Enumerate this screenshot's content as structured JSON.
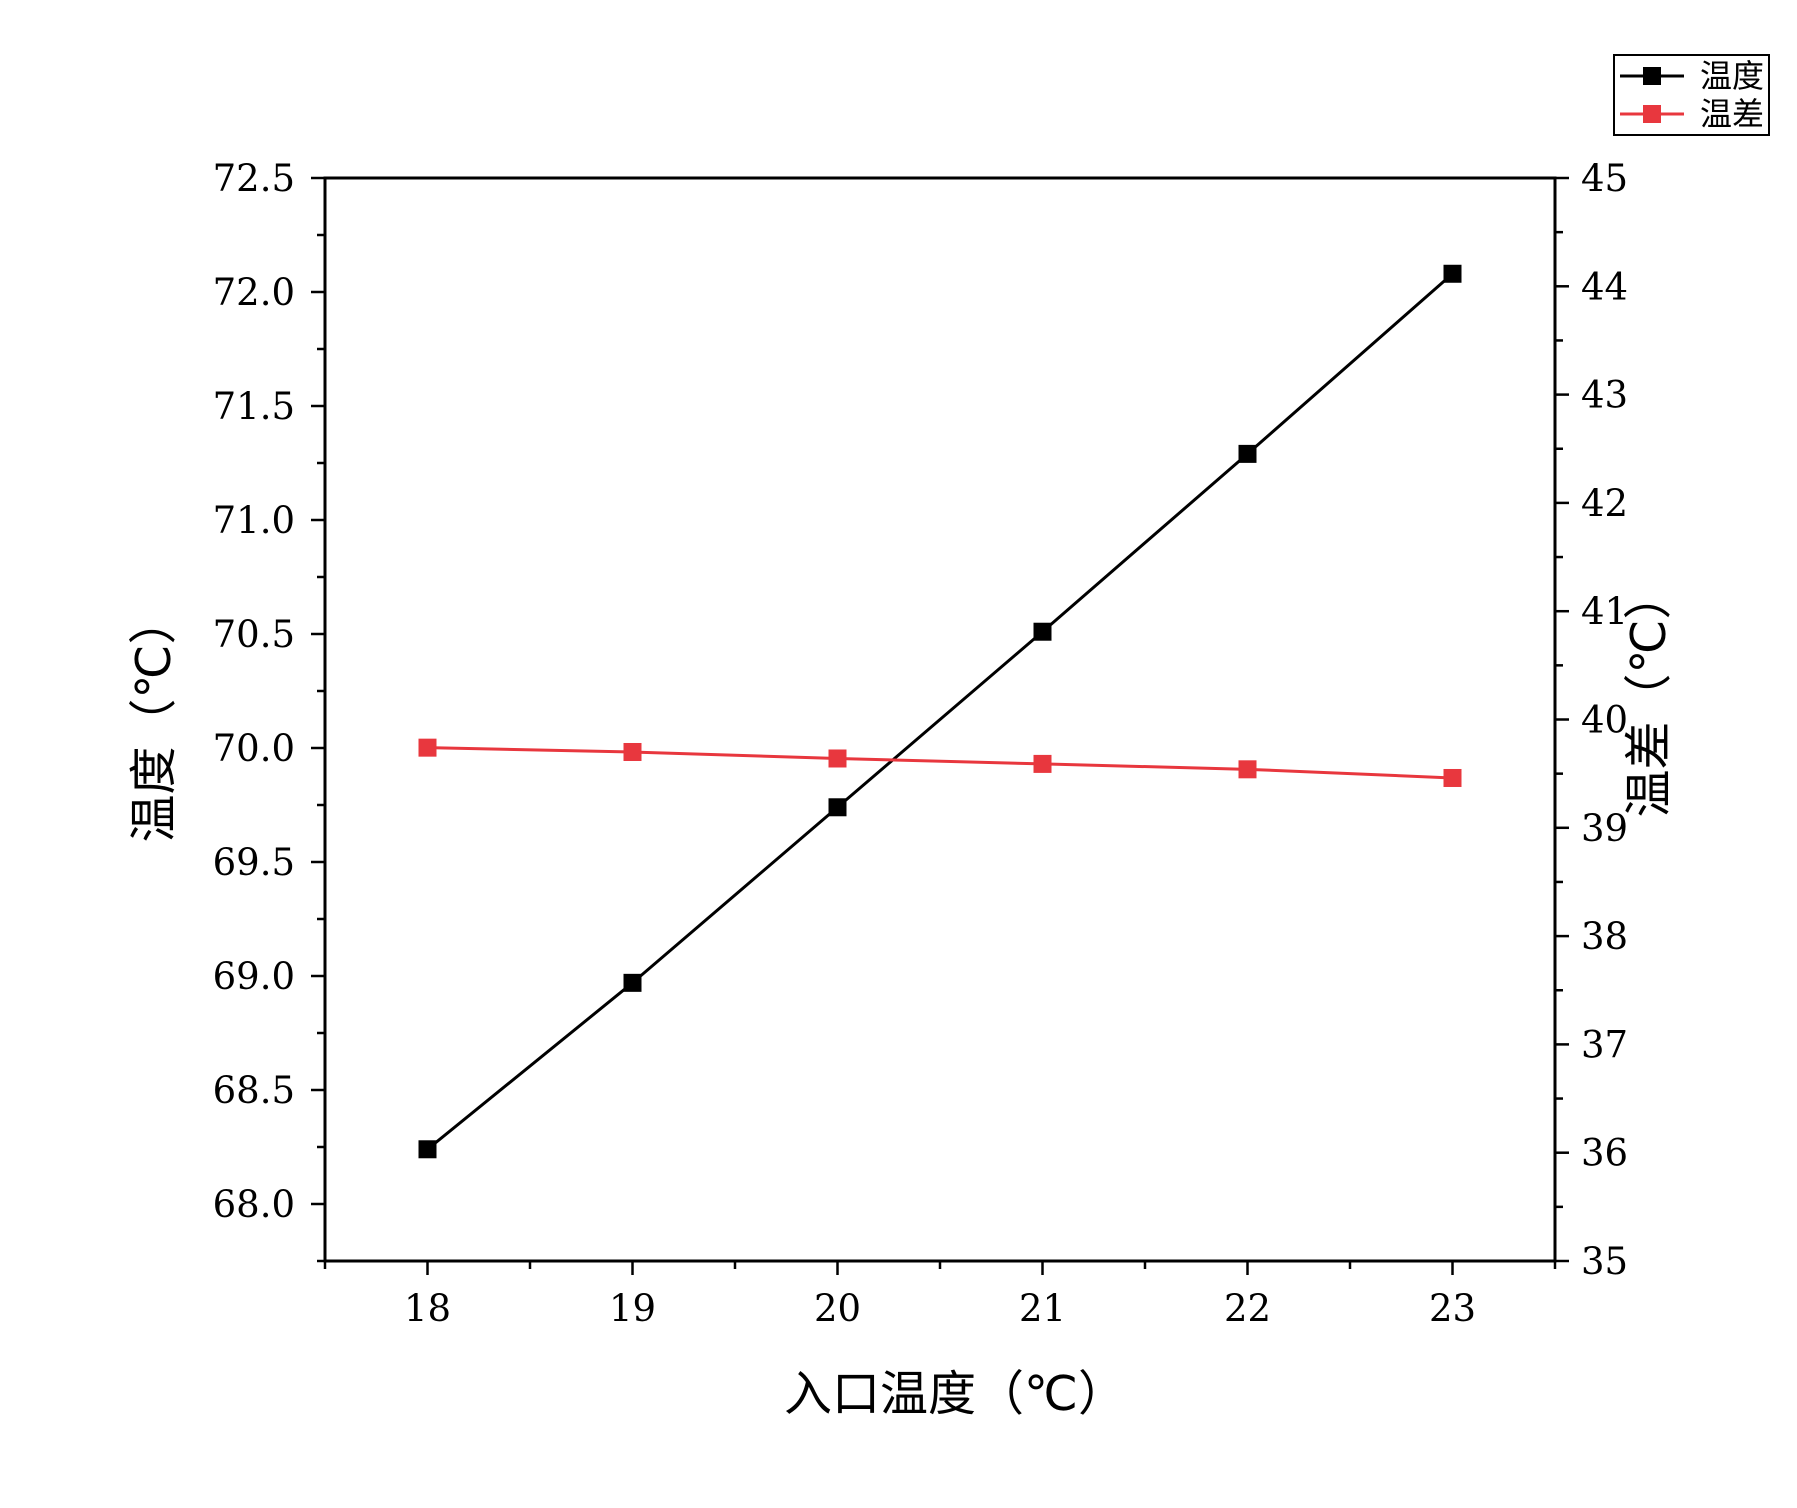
{
  "chart_data": {
    "type": "line",
    "x": [
      18,
      19,
      20,
      21,
      22,
      23
    ],
    "xlabel": "入口温度（℃）",
    "xlim": [
      17.5,
      23.5
    ],
    "xticks": [
      "18",
      "19",
      "20",
      "21",
      "22",
      "23"
    ],
    "ylabel_left": "温度（℃）",
    "ylim_left": [
      67.75,
      72.5
    ],
    "yticks_left": [
      "68.0",
      "68.5",
      "69.0",
      "69.5",
      "70.0",
      "70.5",
      "71.0",
      "71.5",
      "72.0",
      "72.5"
    ],
    "ylabel_right": "温差（℃）",
    "ylim_right": [
      35,
      45
    ],
    "yticks_right": [
      "35",
      "36",
      "37",
      "38",
      "39",
      "40",
      "41",
      "42",
      "43",
      "44",
      "45"
    ],
    "legend_position": "top-right",
    "grid": false,
    "series": [
      {
        "name": "温度",
        "axis": "left",
        "color": "#000000",
        "marker": "square",
        "values": [
          68.24,
          68.97,
          69.74,
          70.51,
          71.29,
          72.08
        ]
      },
      {
        "name": "温差",
        "axis": "right",
        "color": "#e8373e",
        "marker": "square",
        "values": [
          39.74,
          39.7,
          39.64,
          39.59,
          39.54,
          39.46
        ]
      }
    ]
  }
}
